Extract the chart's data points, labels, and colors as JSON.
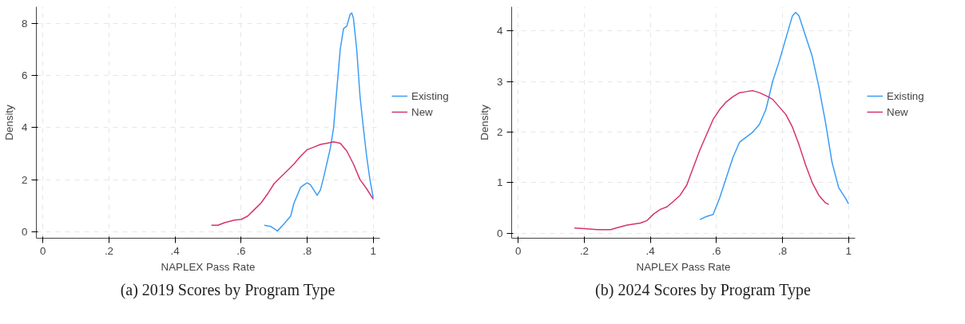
{
  "chart_data": [
    {
      "type": "line",
      "xlabel": "NAPLEX Pass Rate",
      "ylabel": "Density",
      "annotations": [
        "(a) 2019 Scores by Program Type"
      ],
      "grid": true,
      "legend": "right",
      "line_style": "solid",
      "xlim": [
        -0.02,
        1.02
      ],
      "ylim": [
        -0.25,
        8.64
      ],
      "xticks": [
        0,
        {
          "value": 0.2,
          "label": ".2"
        },
        {
          "value": 0.4,
          "label": ".4"
        },
        {
          "value": 0.6,
          "label": ".6"
        },
        {
          "value": 0.8,
          "label": ".8"
        },
        1
      ],
      "yticks": [
        0,
        2,
        4,
        6,
        8
      ],
      "series": [
        {
          "name": "Existing",
          "color": "#3a9df5",
          "x": [
            0.67,
            0.69,
            0.71,
            0.73,
            0.75,
            0.76,
            0.78,
            0.79,
            0.8,
            0.81,
            0.82,
            0.83,
            0.84,
            0.85,
            0.87,
            0.88,
            0.89,
            0.9,
            0.91,
            0.92,
            0.93,
            0.935,
            0.94,
            0.95,
            0.96,
            0.97,
            0.98,
            0.99,
            1.0
          ],
          "values": [
            0.25,
            0.2,
            0.03,
            0.3,
            0.6,
            1.1,
            1.7,
            1.8,
            1.88,
            1.8,
            1.6,
            1.4,
            1.6,
            2.1,
            3.2,
            4.0,
            5.5,
            7.0,
            7.8,
            7.9,
            8.35,
            8.4,
            8.2,
            7.0,
            5.2,
            4.0,
            2.9,
            2.0,
            1.3
          ]
        },
        {
          "name": "New",
          "color": "#d6336b",
          "x": [
            0.51,
            0.53,
            0.55,
            0.58,
            0.6,
            0.62,
            0.64,
            0.66,
            0.68,
            0.7,
            0.72,
            0.74,
            0.76,
            0.78,
            0.8,
            0.82,
            0.84,
            0.86,
            0.88,
            0.9,
            0.92,
            0.94,
            0.96,
            0.98,
            1.0
          ],
          "values": [
            0.25,
            0.25,
            0.35,
            0.45,
            0.47,
            0.6,
            0.85,
            1.1,
            1.45,
            1.85,
            2.1,
            2.35,
            2.6,
            2.9,
            3.15,
            3.25,
            3.35,
            3.4,
            3.45,
            3.4,
            3.1,
            2.6,
            2.0,
            1.65,
            1.25
          ]
        }
      ]
    },
    {
      "type": "line",
      "xlabel": "NAPLEX Pass Rate",
      "ylabel": "Density",
      "annotations": [
        "(b) 2024 Scores by Program Type"
      ],
      "grid": true,
      "legend": "right",
      "line_style": "solid",
      "xlim": [
        -0.02,
        1.02
      ],
      "ylim": [
        -0.1,
        4.48
      ],
      "xticks": [
        0,
        {
          "value": 0.2,
          "label": ".2"
        },
        {
          "value": 0.4,
          "label": ".4"
        },
        {
          "value": 0.6,
          "label": ".6"
        },
        {
          "value": 0.8,
          "label": ".8"
        },
        1
      ],
      "yticks": [
        0,
        1,
        2,
        3,
        4
      ],
      "series": [
        {
          "name": "Existing",
          "color": "#3a9df5",
          "x": [
            0.55,
            0.57,
            0.59,
            0.61,
            0.63,
            0.65,
            0.67,
            0.69,
            0.71,
            0.73,
            0.75,
            0.77,
            0.79,
            0.81,
            0.83,
            0.84,
            0.85,
            0.87,
            0.89,
            0.91,
            0.93,
            0.95,
            0.97,
            0.99,
            1.0
          ],
          "values": [
            0.27,
            0.33,
            0.37,
            0.7,
            1.1,
            1.5,
            1.8,
            1.9,
            2.0,
            2.15,
            2.45,
            3.0,
            3.4,
            3.85,
            4.3,
            4.37,
            4.3,
            3.9,
            3.5,
            2.9,
            2.2,
            1.4,
            0.9,
            0.7,
            0.58
          ]
        },
        {
          "name": "New",
          "color": "#d6336b",
          "x": [
            0.17,
            0.2,
            0.24,
            0.28,
            0.3,
            0.33,
            0.37,
            0.39,
            0.41,
            0.43,
            0.45,
            0.47,
            0.49,
            0.51,
            0.53,
            0.55,
            0.57,
            0.59,
            0.61,
            0.63,
            0.65,
            0.67,
            0.69,
            0.71,
            0.73,
            0.75,
            0.77,
            0.79,
            0.81,
            0.83,
            0.85,
            0.87,
            0.89,
            0.91,
            0.93,
            0.94
          ],
          "values": [
            0.1,
            0.09,
            0.07,
            0.07,
            0.11,
            0.16,
            0.2,
            0.25,
            0.38,
            0.47,
            0.52,
            0.63,
            0.75,
            0.95,
            1.3,
            1.65,
            1.95,
            2.25,
            2.45,
            2.6,
            2.7,
            2.78,
            2.8,
            2.82,
            2.78,
            2.72,
            2.65,
            2.5,
            2.35,
            2.1,
            1.75,
            1.35,
            1.0,
            0.75,
            0.6,
            0.57
          ]
        }
      ]
    }
  ]
}
